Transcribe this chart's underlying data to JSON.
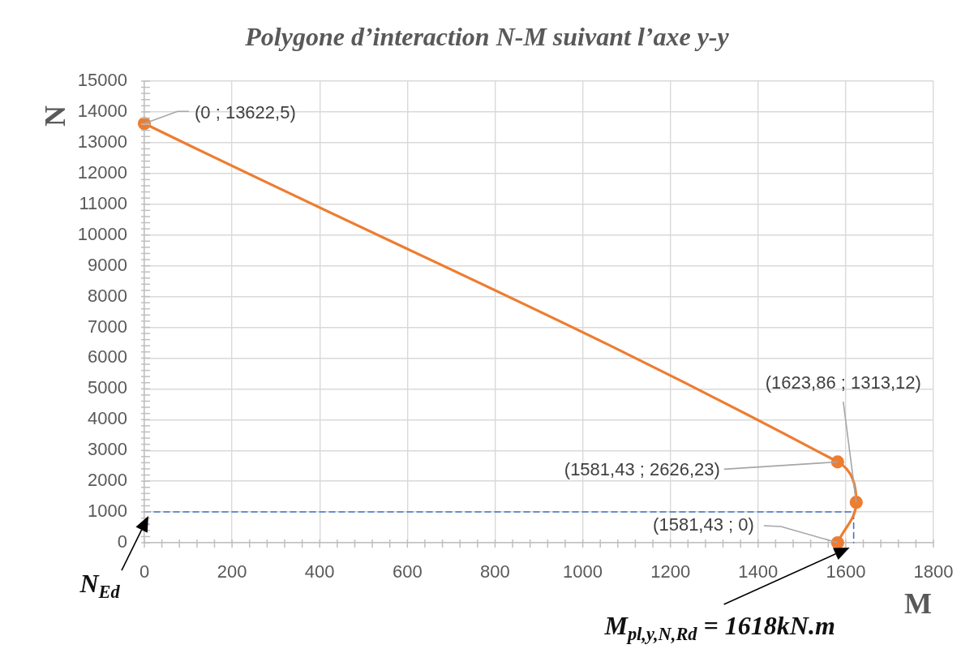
{
  "chart_data": {
    "type": "line",
    "title": "Polygone d’interaction N-M suivant l’axe y-y",
    "xlabel": "M",
    "ylabel": "N",
    "series": [
      {
        "x": [
          0,
          1581.43,
          1623.86,
          1581.43
        ],
        "values": [
          13622.5,
          2626.23,
          1313.12,
          0
        ],
        "color": "#ed7d31",
        "marker": "circle",
        "line_style": "solid",
        "value_labels": [
          "(0 ; 13622,5)",
          "(1581,43 ; 2626,23)",
          "(1623,86 ; 1313,12)",
          "(1581,43 ; 0)"
        ]
      },
      {
        "x": [
          0,
          1618,
          1618
        ],
        "values": [
          1000,
          1000,
          0
        ],
        "color": "#4472c4",
        "marker": "none",
        "line_style": "dashed"
      }
    ],
    "xlim": [
      0,
      1800
    ],
    "xticks": [
      0,
      {
        "value": 40,
        "label": null
      },
      {
        "value": 80,
        "label": null
      },
      {
        "value": 120,
        "label": null
      },
      {
        "value": 160,
        "label": null
      },
      200,
      {
        "value": 240,
        "label": null
      },
      {
        "value": 280,
        "label": null
      },
      {
        "value": 320,
        "label": null
      },
      {
        "value": 360,
        "label": null
      },
      400,
      {
        "value": 440,
        "label": null
      },
      {
        "value": 480,
        "label": null
      },
      {
        "value": 520,
        "label": null
      },
      {
        "value": 560,
        "label": null
      },
      600,
      {
        "value": 640,
        "label": null
      },
      {
        "value": 680,
        "label": null
      },
      {
        "value": 720,
        "label": null
      },
      {
        "value": 760,
        "label": null
      },
      800,
      {
        "value": 840,
        "label": null
      },
      {
        "value": 880,
        "label": null
      },
      {
        "value": 920,
        "label": null
      },
      {
        "value": 960,
        "label": null
      },
      1000,
      {
        "value": 1040,
        "label": null
      },
      {
        "value": 1080,
        "label": null
      },
      {
        "value": 1120,
        "label": null
      },
      {
        "value": 1160,
        "label": null
      },
      1200,
      {
        "value": 1240,
        "label": null
      },
      {
        "value": 1280,
        "label": null
      },
      {
        "value": 1320,
        "label": null
      },
      {
        "value": 1360,
        "label": null
      },
      1400,
      {
        "value": 1440,
        "label": null
      },
      {
        "value": 1480,
        "label": null
      },
      {
        "value": 1520,
        "label": null
      },
      {
        "value": 1560,
        "label": null
      },
      1600,
      {
        "value": 1640,
        "label": null
      },
      {
        "value": 1680,
        "label": null
      },
      {
        "value": 1720,
        "label": null
      },
      {
        "value": 1760,
        "label": null
      },
      1800
    ],
    "ylim": [
      0,
      15000
    ],
    "yticks": [
      0,
      {
        "value": 200,
        "label": null
      },
      {
        "value": 400,
        "label": null
      },
      {
        "value": 600,
        "label": null
      },
      {
        "value": 800,
        "label": null
      },
      1000,
      {
        "value": 1200,
        "label": null
      },
      {
        "value": 1400,
        "label": null
      },
      {
        "value": 1600,
        "label": null
      },
      {
        "value": 1800,
        "label": null
      },
      2000,
      {
        "value": 2200,
        "label": null
      },
      {
        "value": 2400,
        "label": null
      },
      {
        "value": 2600,
        "label": null
      },
      {
        "value": 2800,
        "label": null
      },
      3000,
      {
        "value": 3200,
        "label": null
      },
      {
        "value": 3400,
        "label": null
      },
      {
        "value": 3600,
        "label": null
      },
      {
        "value": 3800,
        "label": null
      },
      4000,
      {
        "value": 4200,
        "label": null
      },
      {
        "value": 4400,
        "label": null
      },
      {
        "value": 4600,
        "label": null
      },
      {
        "value": 4800,
        "label": null
      },
      5000,
      {
        "value": 5200,
        "label": null
      },
      {
        "value": 5400,
        "label": null
      },
      {
        "value": 5600,
        "label": null
      },
      {
        "value": 5800,
        "label": null
      },
      6000,
      {
        "value": 6200,
        "label": null
      },
      {
        "value": 6400,
        "label": null
      },
      {
        "value": 6600,
        "label": null
      },
      {
        "value": 6800,
        "label": null
      },
      7000,
      {
        "value": 7200,
        "label": null
      },
      {
        "value": 7400,
        "label": null
      },
      {
        "value": 7600,
        "label": null
      },
      {
        "value": 7800,
        "label": null
      },
      8000,
      {
        "value": 8200,
        "label": null
      },
      {
        "value": 8400,
        "label": null
      },
      {
        "value": 8600,
        "label": null
      },
      {
        "value": 8800,
        "label": null
      },
      9000,
      {
        "value": 9200,
        "label": null
      },
      {
        "value": 9400,
        "label": null
      },
      {
        "value": 9600,
        "label": null
      },
      {
        "value": 9800,
        "label": null
      },
      10000,
      {
        "value": 10200,
        "label": null
      },
      {
        "value": 10400,
        "label": null
      },
      {
        "value": 10600,
        "label": null
      },
      {
        "value": 10800,
        "label": null
      },
      11000,
      {
        "value": 11200,
        "label": null
      },
      {
        "value": 11400,
        "label": null
      },
      {
        "value": 11600,
        "label": null
      },
      {
        "value": 11800,
        "label": null
      },
      12000,
      {
        "value": 12200,
        "label": null
      },
      {
        "value": 12400,
        "label": null
      },
      {
        "value": 12600,
        "label": null
      },
      {
        "value": 12800,
        "label": null
      },
      13000,
      {
        "value": 13200,
        "label": null
      },
      {
        "value": 13400,
        "label": null
      },
      {
        "value": 13600,
        "label": null
      },
      {
        "value": 13800,
        "label": null
      },
      14000,
      {
        "value": 14200,
        "label": null
      },
      {
        "value": 14400,
        "label": null
      },
      {
        "value": 14600,
        "label": null
      },
      {
        "value": 14800,
        "label": null
      },
      15000
    ],
    "grid": true,
    "annotations": [
      {
        "text": "N$_{Ed}$",
        "x": 0,
        "y": 1000
      },
      {
        "text": "M$_{pl,y,N,Rd}$ = 1618kN.m",
        "x": 1618,
        "y": 0
      }
    ]
  }
}
